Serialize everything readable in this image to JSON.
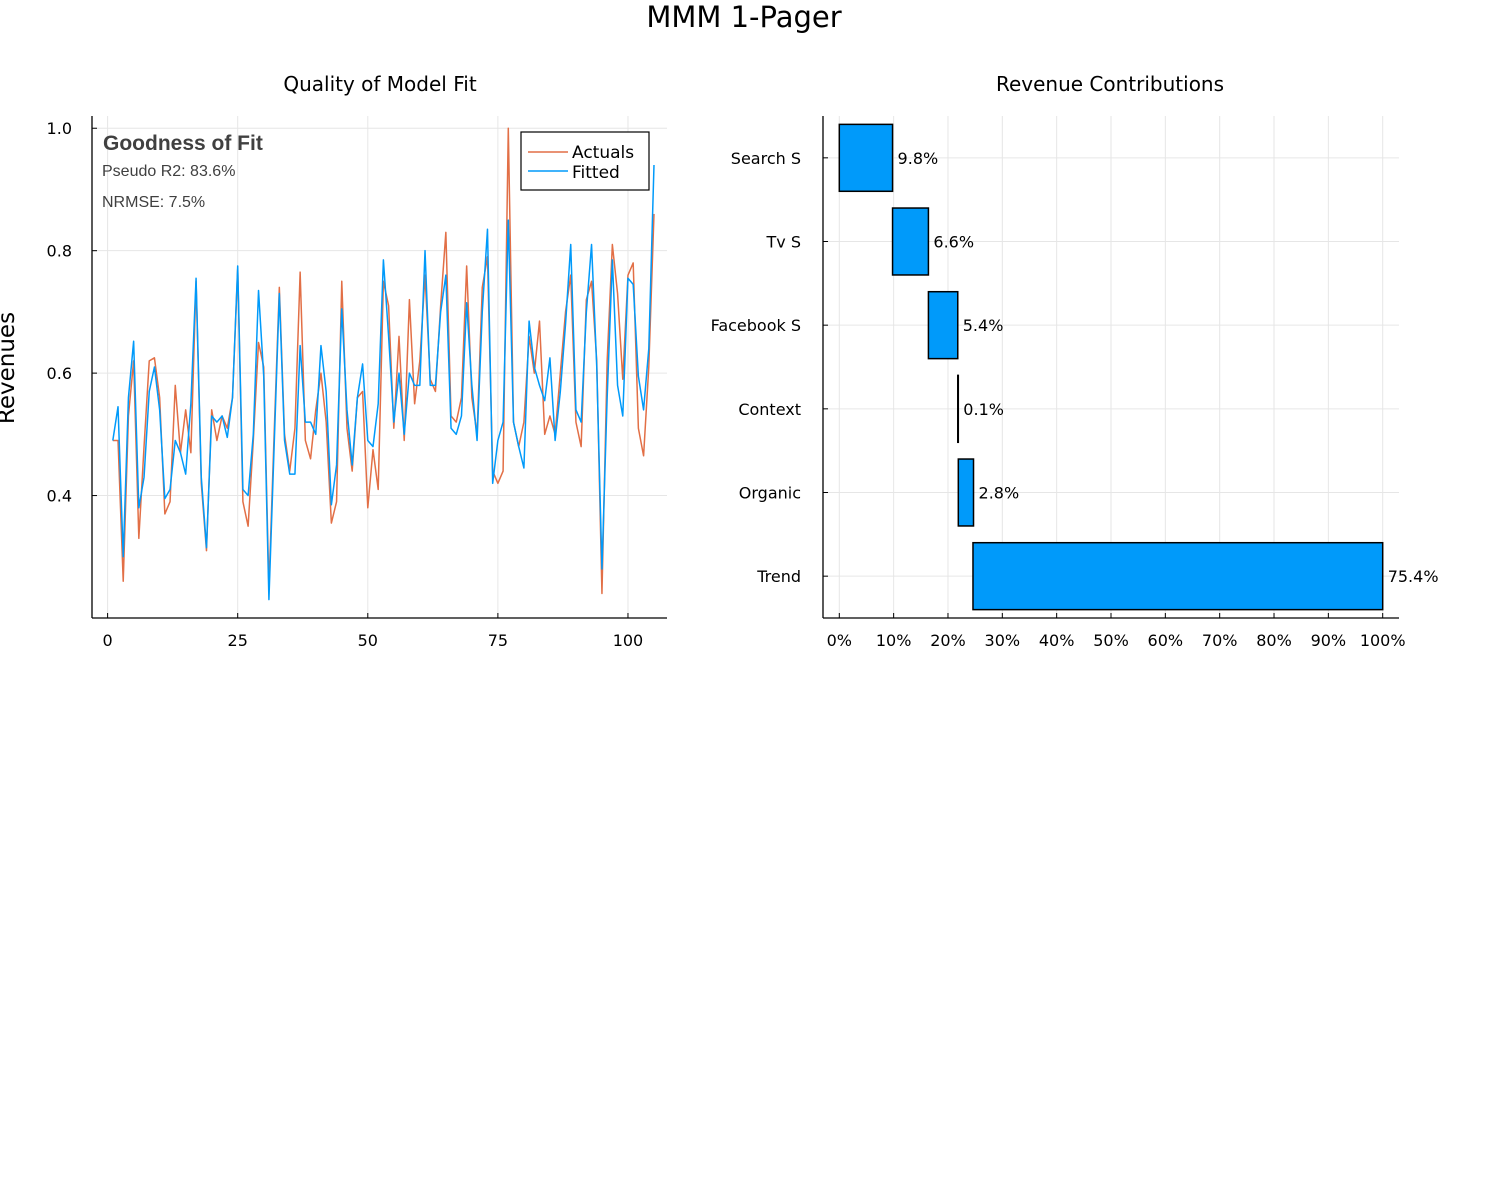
{
  "figure_title": "MMM 1-Pager",
  "colors": {
    "actuals": "#E26F46",
    "fitted": "#009AFA",
    "bar_fill": "#009AFA",
    "bar_edge": "#000000"
  },
  "chart_data": [
    {
      "type": "line",
      "title": "Quality of Model Fit",
      "ylabel": "Revenues",
      "xlabel": "",
      "xlim": [
        -3,
        107.5
      ],
      "ylim": [
        0.2,
        1.02
      ],
      "xticks": [
        0,
        25,
        50,
        75,
        100
      ],
      "xtick_labels": [
        "0",
        "25",
        "50",
        "75",
        "100"
      ],
      "yticks": [
        0.4,
        0.6,
        0.8,
        1.0
      ],
      "ytick_labels": [
        "0.4",
        "0.6",
        "0.8",
        "1.0"
      ],
      "grid": true,
      "legend_position": "top-right",
      "annotation": {
        "heading": "Goodness of Fit",
        "line1": "Pseudo R2: 83.6%",
        "line2": "NRMSE: 7.5%"
      },
      "x": [
        1,
        2,
        3,
        4,
        5,
        6,
        7,
        8,
        9,
        10,
        11,
        12,
        13,
        14,
        15,
        16,
        17,
        18,
        19,
        20,
        21,
        22,
        23,
        24,
        25,
        26,
        27,
        28,
        29,
        30,
        31,
        32,
        33,
        34,
        35,
        36,
        37,
        38,
        39,
        40,
        41,
        42,
        43,
        44,
        45,
        46,
        47,
        48,
        49,
        50,
        51,
        52,
        53,
        54,
        55,
        56,
        57,
        58,
        59,
        60,
        61,
        62,
        63,
        64,
        65,
        66,
        67,
        68,
        69,
        70,
        71,
        72,
        73,
        74,
        75,
        76,
        77,
        78,
        79,
        80,
        81,
        82,
        83,
        84,
        85,
        86,
        87,
        88,
        89,
        90,
        91,
        92,
        93,
        94,
        95,
        96,
        97,
        98,
        99,
        100,
        101,
        102,
        103,
        104,
        105
      ],
      "series": [
        {
          "name": "Actuals",
          "color": "#E26F46",
          "values": [
            0.49,
            0.49,
            0.26,
            0.53,
            0.62,
            0.33,
            0.48,
            0.62,
            0.625,
            0.56,
            0.37,
            0.39,
            0.58,
            0.47,
            0.54,
            0.47,
            0.75,
            0.42,
            0.31,
            0.54,
            0.49,
            0.53,
            0.51,
            0.56,
            0.77,
            0.39,
            0.35,
            0.49,
            0.65,
            0.61,
            0.25,
            0.5,
            0.74,
            0.5,
            0.44,
            0.51,
            0.765,
            0.49,
            0.46,
            0.54,
            0.6,
            0.52,
            0.355,
            0.39,
            0.75,
            0.51,
            0.44,
            0.56,
            0.57,
            0.38,
            0.475,
            0.41,
            0.75,
            0.71,
            0.51,
            0.66,
            0.49,
            0.72,
            0.55,
            0.62,
            0.76,
            0.59,
            0.57,
            0.71,
            0.83,
            0.53,
            0.52,
            0.56,
            0.775,
            0.56,
            0.5,
            0.74,
            0.79,
            0.44,
            0.42,
            0.44,
            1.0,
            0.52,
            0.48,
            0.52,
            0.66,
            0.6,
            0.685,
            0.5,
            0.53,
            0.5,
            0.6,
            0.7,
            0.76,
            0.52,
            0.48,
            0.72,
            0.75,
            0.62,
            0.24,
            0.62,
            0.81,
            0.73,
            0.59,
            0.76,
            0.78,
            0.51,
            0.465,
            0.61,
            0.86
          ]
        },
        {
          "name": "Fitted",
          "color": "#009AFA",
          "values": [
            0.49,
            0.545,
            0.3,
            0.56,
            0.652,
            0.38,
            0.43,
            0.57,
            0.61,
            0.54,
            0.395,
            0.41,
            0.49,
            0.47,
            0.435,
            0.55,
            0.755,
            0.43,
            0.315,
            0.53,
            0.52,
            0.53,
            0.495,
            0.56,
            0.775,
            0.41,
            0.4,
            0.5,
            0.735,
            0.595,
            0.23,
            0.48,
            0.73,
            0.49,
            0.435,
            0.435,
            0.645,
            0.52,
            0.52,
            0.5,
            0.645,
            0.57,
            0.385,
            0.45,
            0.705,
            0.54,
            0.45,
            0.56,
            0.615,
            0.49,
            0.48,
            0.55,
            0.785,
            0.66,
            0.52,
            0.6,
            0.5,
            0.6,
            0.58,
            0.58,
            0.8,
            0.58,
            0.58,
            0.7,
            0.76,
            0.51,
            0.5,
            0.53,
            0.715,
            0.58,
            0.49,
            0.7,
            0.835,
            0.42,
            0.49,
            0.52,
            0.85,
            0.52,
            0.48,
            0.445,
            0.685,
            0.61,
            0.58,
            0.555,
            0.625,
            0.49,
            0.57,
            0.68,
            0.81,
            0.54,
            0.52,
            0.7,
            0.81,
            0.61,
            0.28,
            0.56,
            0.785,
            0.58,
            0.53,
            0.755,
            0.745,
            0.595,
            0.54,
            0.64,
            0.94
          ]
        }
      ]
    },
    {
      "type": "bar",
      "orientation": "horizontal-waterfall",
      "title": "Revenue Contributions",
      "xlabel": "",
      "ylabel": "",
      "xlim": [
        -0.03,
        1.03
      ],
      "xticks": [
        0,
        0.1,
        0.2,
        0.3,
        0.4,
        0.5,
        0.6,
        0.7,
        0.8,
        0.9,
        1.0
      ],
      "xtick_labels": [
        "0%",
        "10%",
        "20%",
        "30%",
        "40%",
        "50%",
        "60%",
        "70%",
        "80%",
        "90%",
        "100%"
      ],
      "grid": true,
      "categories": [
        "Search S",
        "Tv S",
        "Facebook S",
        "Context",
        "Organic",
        "Trend"
      ],
      "values": [
        0.098,
        0.066,
        0.054,
        0.001,
        0.028,
        0.754
      ],
      "starts": [
        0.0,
        0.098,
        0.164,
        0.218,
        0.219,
        0.246
      ],
      "data_labels": [
        "9.8%",
        "6.6%",
        "5.4%",
        "0.1%",
        "2.8%",
        "75.4%"
      ]
    }
  ]
}
